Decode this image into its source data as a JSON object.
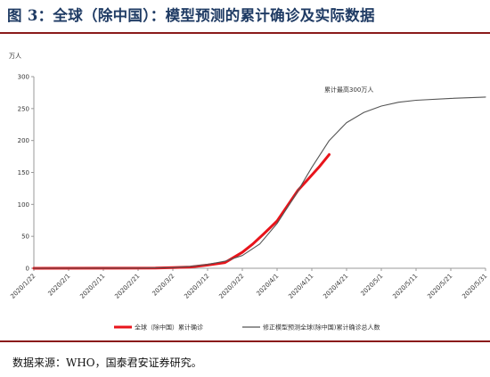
{
  "figure": {
    "title": "图 3：全球（除中国）：模型预测的累计确诊及实际数据",
    "unit": "万人",
    "source": "数据来源：WHO，国泰君安证券研究。"
  },
  "chart_data": {
    "type": "line",
    "x_ticks": [
      "2020/1/22",
      "2020/2/1",
      "2020/2/11",
      "2020/2/21",
      "2020/3/2",
      "2020/3/12",
      "2020/3/22",
      "2020/4/1",
      "2020/4/11",
      "2020/4/21",
      "2020/5/1",
      "2020/5/11",
      "2020/5/21",
      "2020/5/31"
    ],
    "y_ticks": [
      0,
      50,
      100,
      150,
      200,
      250,
      300
    ],
    "ylim": [
      0,
      300
    ],
    "x_start": "2020/1/22",
    "x_end": "2020/5/31",
    "legend_position": "bottom",
    "annotation": "累计最高300万人",
    "series": [
      {
        "name": "全球（除中国）累计确诊",
        "color": "#e8141b",
        "x": [
          "2020/1/22",
          "2020/2/11",
          "2020/2/26",
          "2020/3/2",
          "2020/3/7",
          "2020/3/12",
          "2020/3/17",
          "2020/3/22",
          "2020/3/25",
          "2020/3/28",
          "2020/4/1",
          "2020/4/4",
          "2020/4/7",
          "2020/4/10",
          "2020/4/13",
          "2020/4/16"
        ],
        "y": [
          0,
          0.1,
          0.3,
          1,
          2,
          5,
          9,
          25,
          38,
          53,
          74,
          98,
          122,
          140,
          158,
          178
        ]
      },
      {
        "name": "修正模型预测全球(除中国)累计确诊总人数",
        "color": "#555555",
        "x": [
          "2020/1/22",
          "2020/2/21",
          "2020/3/2",
          "2020/3/7",
          "2020/3/12",
          "2020/3/17",
          "2020/3/22",
          "2020/3/27",
          "2020/4/1",
          "2020/4/6",
          "2020/4/11",
          "2020/4/16",
          "2020/4/21",
          "2020/4/26",
          "2020/5/1",
          "2020/5/6",
          "2020/5/11",
          "2020/5/21",
          "2020/5/31"
        ],
        "y": [
          0,
          0.3,
          1,
          3,
          6,
          11,
          20,
          38,
          70,
          112,
          158,
          200,
          228,
          244,
          254,
          260,
          263,
          266,
          268
        ]
      }
    ]
  }
}
